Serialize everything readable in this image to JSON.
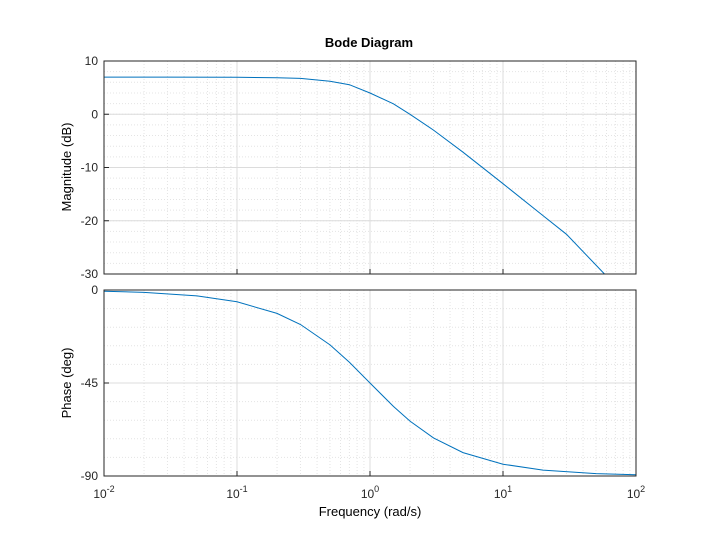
{
  "chart_data": [
    {
      "type": "line",
      "panel": "magnitude",
      "title": "Bode Diagram",
      "ylabel": "Magnitude (dB)",
      "xscale": "log",
      "xlim": [
        0.01,
        100
      ],
      "ylim": [
        -30,
        10
      ],
      "yticks": [
        10,
        0,
        -10,
        -20,
        -30
      ],
      "grid": "on",
      "series": [
        {
          "color": "#0072bd",
          "x": [
            0.01,
            0.03,
            0.1,
            0.2,
            0.3,
            0.5,
            0.7,
            1,
            1.5,
            2,
            3,
            5,
            10,
            20,
            30,
            58
          ],
          "y": [
            6.97,
            6.97,
            6.93,
            6.85,
            6.73,
            6.21,
            5.55,
            3.99,
            1.97,
            0.0,
            -2.98,
            -7.13,
            -13.05,
            -19.04,
            -22.55,
            -30.0
          ]
        }
      ]
    },
    {
      "type": "line",
      "panel": "phase",
      "xlabel": "Frequency  (rad/s)",
      "ylabel": "Phase (deg)",
      "xscale": "log",
      "xlim": [
        0.01,
        100
      ],
      "ylim": [
        -90,
        0
      ],
      "yticks": [
        0,
        -45,
        -90
      ],
      "grid": "on",
      "xticks": [
        {
          "base": "10",
          "exp": "-2"
        },
        {
          "base": "10",
          "exp": "-1"
        },
        {
          "base": "10",
          "exp": "0"
        },
        {
          "base": "10",
          "exp": "1"
        },
        {
          "base": "10",
          "exp": "2"
        }
      ],
      "series": [
        {
          "color": "#0072bd",
          "x": [
            0.01,
            0.02,
            0.05,
            0.1,
            0.2,
            0.3,
            0.5,
            0.7,
            1,
            1.5,
            2,
            3,
            5,
            10,
            20,
            50,
            100
          ],
          "y": [
            -0.57,
            -1.15,
            -2.86,
            -5.71,
            -11.31,
            -16.7,
            -26.57,
            -34.99,
            -45.0,
            -56.31,
            -63.43,
            -71.57,
            -78.69,
            -84.29,
            -87.14,
            -88.85,
            -89.43
          ]
        }
      ]
    }
  ]
}
